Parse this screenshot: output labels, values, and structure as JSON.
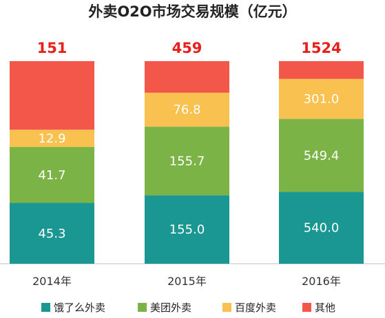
{
  "chart_data": {
    "type": "bar",
    "stacked": true,
    "title": "外卖O2O市场交易规模（亿元）",
    "categories": [
      "2014年",
      "2015年",
      "2016年"
    ],
    "totals": [
      "151",
      "459",
      "1524"
    ],
    "total_color": "#e8201c",
    "series": [
      {
        "name": "饿了么外卖",
        "color": "#1a9693",
        "values": [
          45.3,
          155.0,
          540.0
        ],
        "labels": [
          "45.3",
          "155.0",
          "540.0"
        ]
      },
      {
        "name": "美团外卖",
        "color": "#7cb347",
        "values": [
          41.7,
          155.7,
          549.4
        ],
        "labels": [
          "41.7",
          "155.7",
          "549.4"
        ]
      },
      {
        "name": "百度外卖",
        "color": "#f9c150",
        "values": [
          12.9,
          76.8,
          301.0
        ],
        "labels": [
          "12.9",
          "76.8",
          "301.0"
        ]
      },
      {
        "name": "其他",
        "color": "#f2574a",
        "values": [
          51.1,
          71.5,
          133.6
        ],
        "labels": [
          "",
          "",
          ""
        ]
      }
    ],
    "value_scale": "percent-stacked",
    "xlabel": "",
    "ylabel": "",
    "legend_position": "bottom",
    "grid": false
  }
}
